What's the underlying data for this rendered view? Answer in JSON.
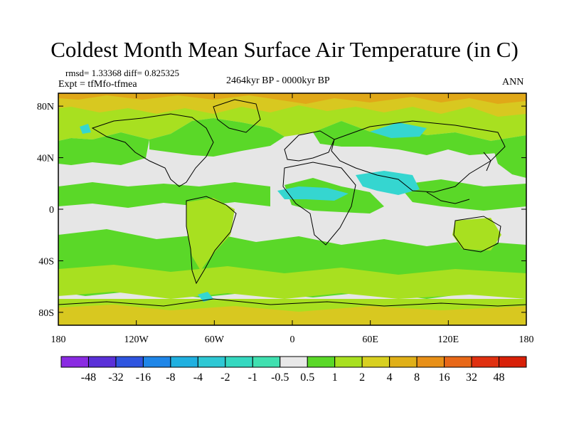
{
  "title": "Coldest Month Mean Surface Air Temperature (in C)",
  "stats_line": "rmsd= 1.33368 diff= 0.825325",
  "experiment": "Expt = tfMfo-tfmea",
  "period": "2464kyr BP - 0000kyr BP",
  "season": "ANN",
  "lat_labels": [
    "80N",
    "40N",
    "0",
    "40S",
    "80S"
  ],
  "lat_values": [
    80,
    40,
    0,
    -40,
    -80
  ],
  "lon_labels": [
    "180",
    "120W",
    "60W",
    "0",
    "60E",
    "120E",
    "180"
  ],
  "lon_values": [
    -180,
    -120,
    -60,
    0,
    60,
    120,
    180
  ],
  "colorbar": {
    "labels": [
      "-48",
      "-32",
      "-16",
      "-8",
      "-4",
      "-2",
      "-1",
      "-0.5",
      "0.5",
      "1",
      "2",
      "4",
      "8",
      "16",
      "32",
      "48"
    ],
    "colors": [
      "#8a2be2",
      "#5a30d8",
      "#2f55e0",
      "#1f86e8",
      "#20b0e0",
      "#2ec8d4",
      "#35d8c0",
      "#40e0b0",
      "#e8e8e8",
      "#5ad828",
      "#a8e020",
      "#d8d020",
      "#e0b018",
      "#e89018",
      "#e86818",
      "#e03010",
      "#d82008"
    ]
  },
  "map_colors": {
    "neutral": "#e6e6e6",
    "green": "#5ad828",
    "lime": "#a8e020",
    "yellow": "#d8c820",
    "orange": "#e0a818",
    "cyan": "#35d6d0"
  }
}
